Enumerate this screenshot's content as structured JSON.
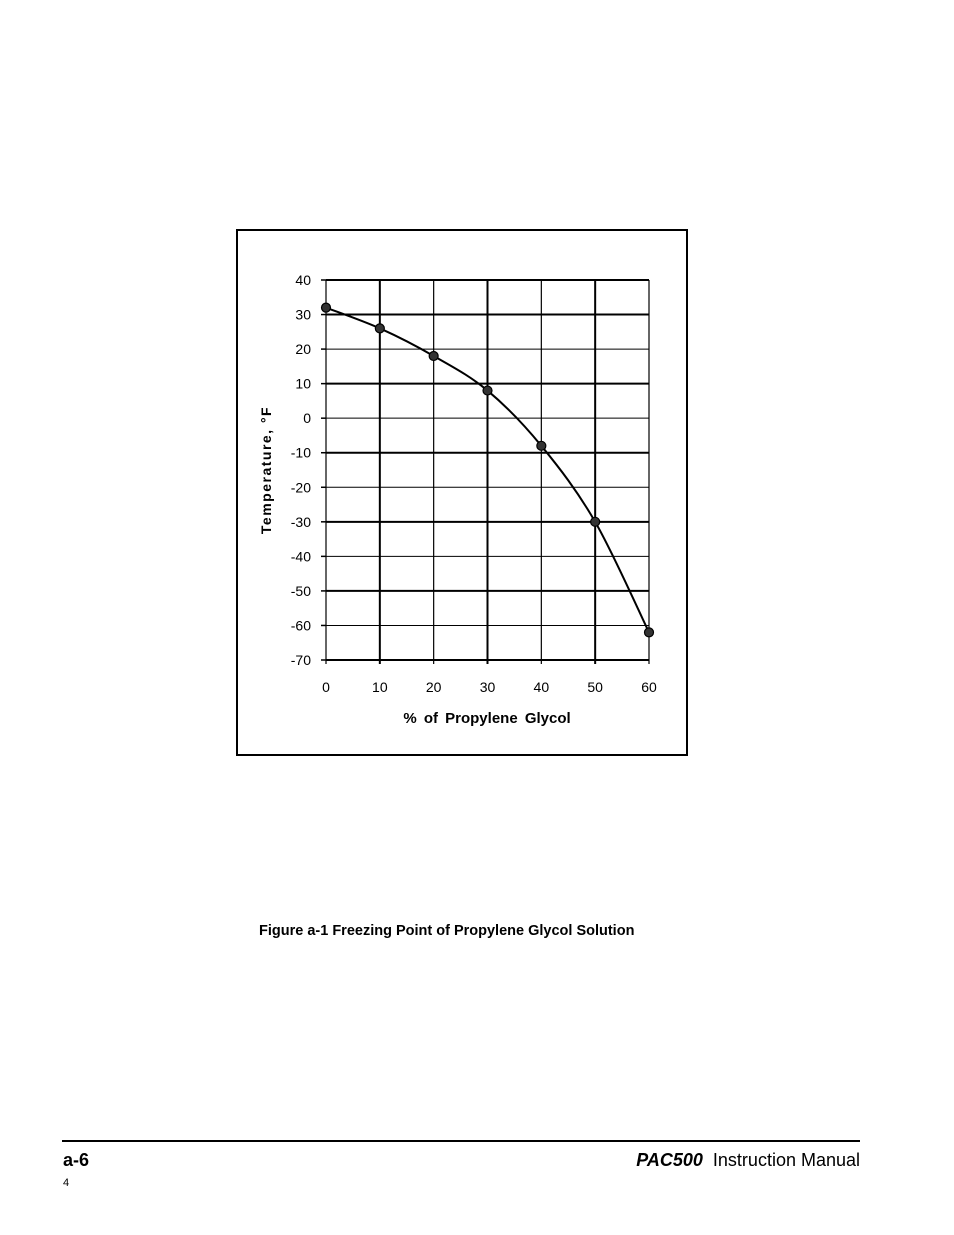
{
  "chart_data": {
    "type": "line",
    "xlabel": "% of Propylene Glycol",
    "ylabel": "Temperature, °F",
    "xlim": [
      0,
      60
    ],
    "ylim": [
      -70,
      40
    ],
    "x_ticks": [
      "0",
      "10",
      "20",
      "30",
      "40",
      "50",
      "60"
    ],
    "y_ticks": [
      "40",
      "30",
      "20",
      "10",
      "0",
      "-10",
      "-20",
      "-30",
      "-40",
      "-50",
      "-60",
      "-70"
    ],
    "grid": true,
    "x": [
      0,
      10,
      20,
      30,
      40,
      50,
      60
    ],
    "values": [
      32,
      26,
      18,
      8,
      -8,
      -30,
      -62
    ],
    "line_color": "#000000",
    "marker_color": "#333333"
  },
  "caption": "Figure a-1  Freezing Point of Propylene Glycol Solution",
  "footer": {
    "page_label": "a-6",
    "product": "PAC500",
    "manual": "Instruction Manual",
    "sub_number": "4"
  }
}
